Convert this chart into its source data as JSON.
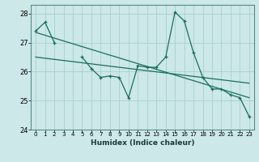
{
  "xlabel": "Humidex (Indice chaleur)",
  "background_color": "#cce8e8",
  "grid_color": "#aacfcf",
  "line_color": "#1a6e5e",
  "x_values": [
    0,
    1,
    2,
    3,
    4,
    5,
    6,
    7,
    8,
    9,
    10,
    11,
    12,
    13,
    14,
    15,
    16,
    17,
    18,
    19,
    20,
    21,
    22,
    23
  ],
  "line1": [
    27.4,
    27.7,
    27.0,
    null,
    null,
    26.5,
    26.1,
    25.8,
    25.85,
    25.8,
    25.1,
    26.2,
    26.15,
    26.15,
    26.5,
    28.05,
    27.75,
    26.65,
    25.8,
    25.4,
    25.4,
    25.2,
    25.1,
    24.45
  ],
  "trend1_x": [
    0,
    23
  ],
  "trend1_y": [
    27.35,
    25.1
  ],
  "trend2_x": [
    0,
    23
  ],
  "trend2_y": [
    26.5,
    25.6
  ],
  "ylim": [
    24.0,
    28.3
  ],
  "yticks": [
    24,
    25,
    26,
    27,
    28
  ],
  "xlim": [
    -0.5,
    23.5
  ]
}
